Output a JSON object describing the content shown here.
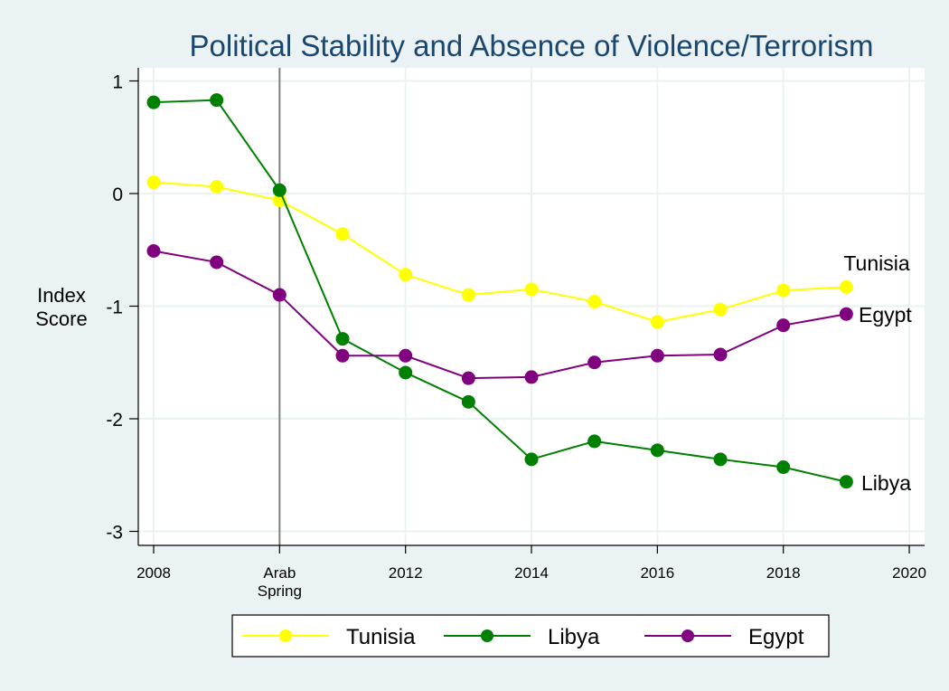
{
  "chart_data": {
    "type": "line",
    "title": "Political Stability and Absence of Violence/Terrorism",
    "ylabel": [
      "Index",
      "Score"
    ],
    "xlabel": "",
    "xlim": [
      2008,
      2020
    ],
    "ylim": [
      -3.1,
      1.15
    ],
    "yticks": [
      1,
      0,
      -1,
      -2,
      -3
    ],
    "yticklabels": [
      "1",
      "0",
      "-1",
      "-2",
      "-3"
    ],
    "xticks": [
      {
        "x": 2008,
        "label": [
          "2008"
        ]
      },
      {
        "x": 2010,
        "label": [
          "Arab",
          "Spring"
        ]
      },
      {
        "x": 2012,
        "label": [
          "2012"
        ]
      },
      {
        "x": 2014,
        "label": [
          "2014"
        ]
      },
      {
        "x": 2016,
        "label": [
          "2016"
        ]
      },
      {
        "x": 2018,
        "label": [
          "2018"
        ]
      },
      {
        "x": 2020,
        "label": [
          "2020"
        ]
      }
    ],
    "grid": true,
    "vline": {
      "x": 2010,
      "color": "#808080"
    },
    "x": [
      2008,
      2009,
      2010,
      2011,
      2012,
      2013,
      2014,
      2015,
      2016,
      2017,
      2018,
      2019
    ],
    "series": [
      {
        "name": "Tunisia",
        "color": "#ffff00",
        "values": [
          0.1,
          0.06,
          -0.06,
          -0.36,
          -0.72,
          -0.9,
          -0.85,
          -0.96,
          -1.14,
          -1.03,
          -0.86,
          -0.83
        ]
      },
      {
        "name": "Libya",
        "color": "#008000",
        "values": [
          0.81,
          0.83,
          0.03,
          -1.29,
          -1.59,
          -1.85,
          -2.36,
          -2.2,
          -2.28,
          -2.36,
          -2.43,
          -2.56
        ]
      },
      {
        "name": "Egypt",
        "color": "#800080",
        "values": [
          -0.51,
          -0.61,
          -0.9,
          -1.44,
          -1.44,
          -1.64,
          -1.63,
          -1.5,
          -1.44,
          -1.43,
          -1.17,
          -1.07
        ]
      }
    ],
    "end_labels": [
      "Tunisia",
      "Egypt",
      "Libya"
    ],
    "legend": {
      "position": "bottom",
      "entries": [
        "Tunisia",
        "Libya",
        "Egypt"
      ]
    }
  }
}
